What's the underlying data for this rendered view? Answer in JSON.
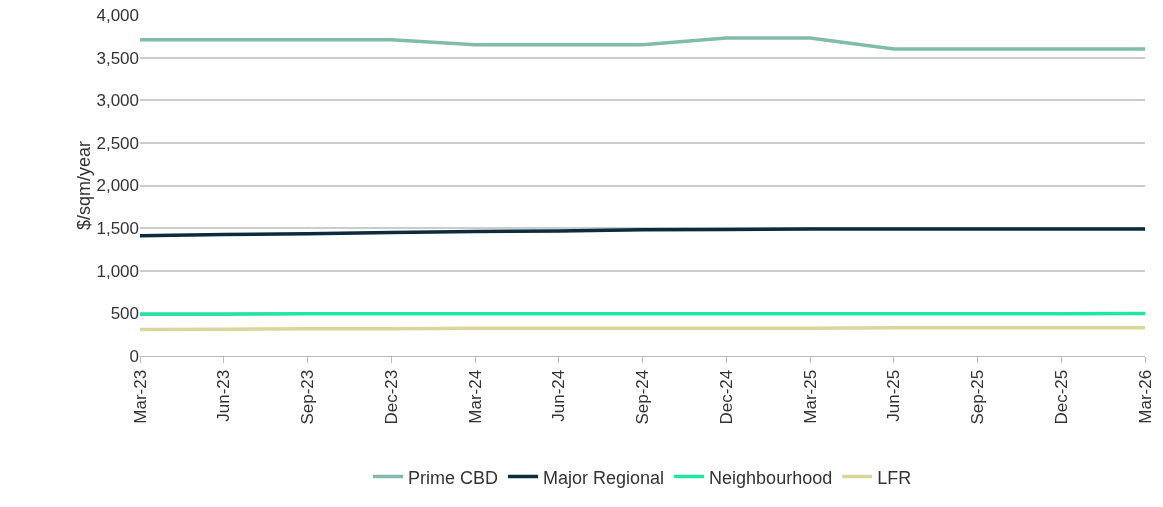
{
  "chart_data": {
    "type": "line",
    "ylabel": "$/sqm/year",
    "categories": [
      "Mar-23",
      "Jun-23",
      "Sep-23",
      "Dec-23",
      "Mar-24",
      "Jun-24",
      "Sep-24",
      "Dec-24",
      "Mar-25",
      "Jun-25",
      "Sep-25",
      "Dec-25",
      "Mar-26"
    ],
    "series": [
      {
        "name": "Prime CBD",
        "color": "#80bca9",
        "values": [
          3710,
          3710,
          3710,
          3710,
          3650,
          3650,
          3650,
          3730,
          3730,
          3600,
          3600,
          3600,
          3600
        ]
      },
      {
        "name": "Major Regional",
        "color": "#0c2b3d",
        "values": [
          1410,
          1425,
          1435,
          1450,
          1460,
          1465,
          1480,
          1485,
          1490,
          1490,
          1490,
          1490,
          1490
        ]
      },
      {
        "name": "Neighbourhood",
        "color": "#1ee8a0",
        "values": [
          490,
          490,
          495,
          495,
          495,
          495,
          495,
          495,
          495,
          495,
          495,
          495,
          500
        ]
      },
      {
        "name": "LFR",
        "color": "#d9d69c",
        "values": [
          310,
          315,
          320,
          320,
          325,
          325,
          325,
          325,
          325,
          330,
          330,
          330,
          330
        ]
      }
    ],
    "ylim": [
      0,
      4000
    ],
    "yticks": [
      0,
      {
        "value": 500,
        "label": "500"
      },
      {
        "value": 1000,
        "label": "1,000"
      },
      {
        "value": 1500,
        "label": "1,500"
      },
      {
        "value": 2000,
        "label": "2,000"
      },
      {
        "value": 2500,
        "label": "2,500"
      },
      {
        "value": 3000,
        "label": "3,000"
      },
      {
        "value": 3500,
        "label": "3,500"
      },
      {
        "value": 4000,
        "label": "4,000"
      }
    ],
    "grid": "y",
    "legend": "bottom",
    "marker": "none",
    "line_style": "solid"
  }
}
